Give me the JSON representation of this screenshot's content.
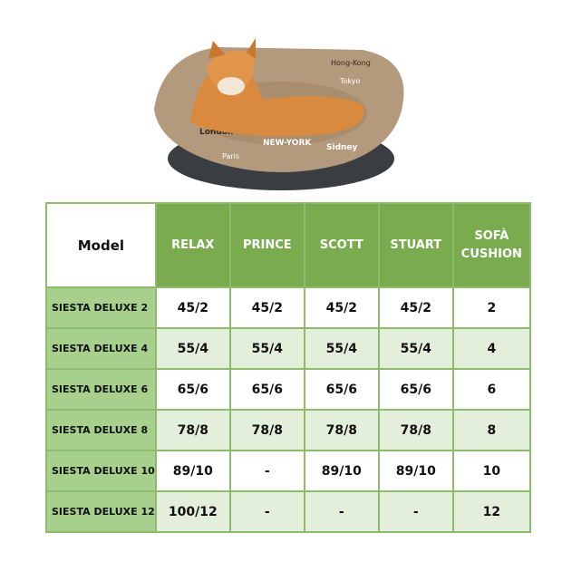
{
  "table": {
    "header": [
      "Model",
      "RELAX",
      "PRINCE",
      "SCOTT",
      "STUART",
      "SOFÀ CUSHION"
    ],
    "rows": [
      [
        "SIESTA DELUXE 2",
        "45/2",
        "45/2",
        "45/2",
        "45/2",
        "2"
      ],
      [
        "SIESTA DELUXE 4",
        "55/4",
        "55/4",
        "55/4",
        "55/4",
        "4"
      ],
      [
        "SIESTA DELUXE 6",
        "65/6",
        "65/6",
        "65/6",
        "65/6",
        "6"
      ],
      [
        "SIESTA DELUXE 8",
        "78/8",
        "78/8",
        "78/8",
        "78/8",
        "8"
      ],
      [
        "SIESTA DELUXE 10",
        "89/10",
        "-",
        "89/10",
        "89/10",
        "10"
      ],
      [
        "SIESTA DELUXE 12",
        "100/12",
        "-",
        "-",
        "-",
        "12"
      ]
    ]
  },
  "colors": {
    "header": "#7aab4f",
    "label": "#a8d08d",
    "alt_row": "#e3efdb",
    "border": "#8cbb6c"
  },
  "photo": {
    "cushion_text": [
      "NEW-YORK",
      "London",
      "Paris",
      "Sidney",
      "Tokyo",
      "Hong-Kong"
    ]
  }
}
